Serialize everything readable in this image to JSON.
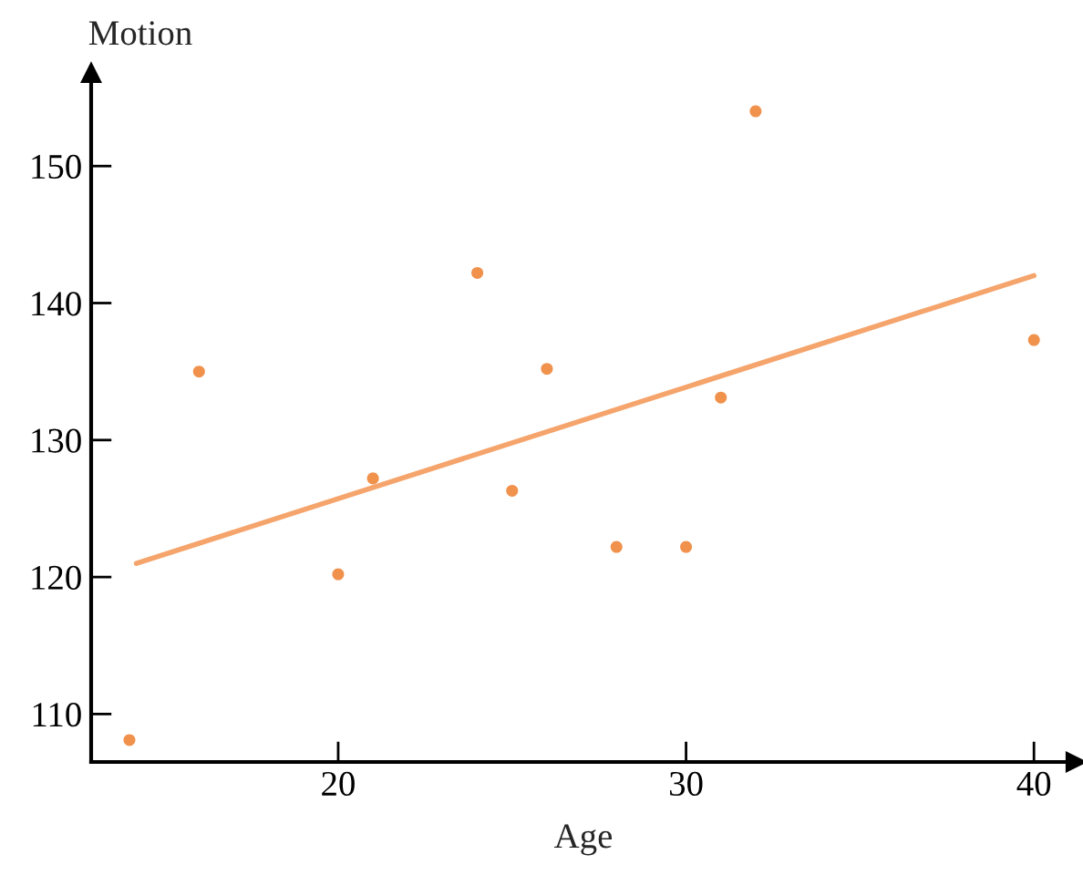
{
  "chart_data": {
    "type": "scatter",
    "xlabel": "Age",
    "ylabel": "Motion",
    "xlim": [
      12.9,
      41.2
    ],
    "ylim": [
      106.5,
      156.8
    ],
    "xticks": [
      20,
      30,
      40
    ],
    "yticks": [
      110,
      120,
      130,
      140,
      150
    ],
    "grid": false,
    "legend": false,
    "marker": "circle",
    "series": [
      {
        "color": "#f0914c",
        "x": [
          14,
          16,
          20,
          21,
          24,
          25,
          26,
          28,
          30,
          31,
          32,
          40
        ],
        "values": [
          108.1,
          135,
          120.2,
          127.2,
          142.2,
          126.3,
          135.2,
          122.2,
          122.2,
          133.1,
          154,
          137.3
        ]
      },
      {
        "type": "line",
        "marker": "none",
        "color": "#f5a46c",
        "x": [
          14.2,
          40
        ],
        "values": [
          121.0,
          142.0
        ]
      }
    ]
  }
}
